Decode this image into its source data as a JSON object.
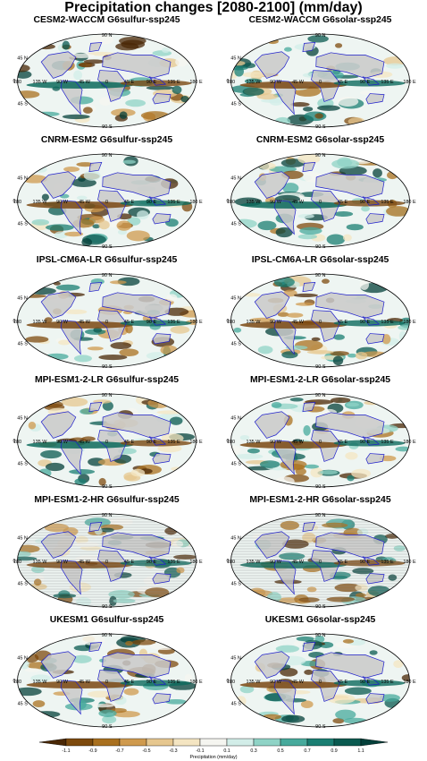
{
  "title": "Precipitation changes [2080-2100] (mm/day)",
  "panels": [
    {
      "label": "CESM2-WACCM G6sulfur-ssp245",
      "lat_labels": [
        "90 N",
        "45 N",
        "0",
        "45 S",
        "90 S"
      ],
      "lon_labels": [
        "180",
        "135 W",
        "90 W",
        "45 W",
        "0",
        "45 E",
        "90 E",
        "135 E",
        "180 E"
      ]
    },
    {
      "label": "CESM2-WACCM G6solar-ssp245",
      "lat_labels": [
        "90 N",
        "45 N",
        "0",
        "45 S",
        "90 S"
      ],
      "lon_labels": [
        "180",
        "135 W",
        "90 W",
        "45 W",
        "0",
        "45 E",
        "90 E",
        "135 E",
        "180 E"
      ]
    },
    {
      "label": "CNRM-ESM2 G6sulfur-ssp245",
      "lat_labels": [
        "90 N",
        "45 N",
        "0",
        "45 S",
        "90 S"
      ],
      "lon_labels": [
        "180",
        "135 W",
        "90 W",
        "45 W",
        "0",
        "45 E",
        "90 E",
        "135 E",
        "180 E"
      ]
    },
    {
      "label": "CNRM-ESM2 G6solar-ssp245",
      "lat_labels": [
        "90 N",
        "45 N",
        "0",
        "45 S",
        "90 S"
      ],
      "lon_labels": [
        "180",
        "135 W",
        "90 W",
        "45 W",
        "0",
        "45 E",
        "90 E",
        "135 E",
        "180 E"
      ]
    },
    {
      "label": "IPSL-CM6A-LR G6sulfur-ssp245",
      "lat_labels": [
        "90 N",
        "45 N",
        "0",
        "45 S",
        "90 S"
      ],
      "lon_labels": [
        "180",
        "135 W",
        "90 W",
        "45 W",
        "0",
        "45 E",
        "90 E",
        "135 E",
        "180 E"
      ]
    },
    {
      "label": "IPSL-CM6A-LR G6solar-ssp245",
      "lat_labels": [
        "90 N",
        "45 N",
        "0",
        "45 S",
        "90 S"
      ],
      "lon_labels": [
        "180",
        "135 W",
        "90 W",
        "45 W",
        "0",
        "45 E",
        "90 E",
        "135 E",
        "180 E"
      ]
    },
    {
      "label": "MPI-ESM1-2-LR G6sulfur-ssp245",
      "lat_labels": [
        "90 N",
        "45 N",
        "0",
        "45 S",
        "90 S"
      ],
      "lon_labels": [
        "180",
        "135 W",
        "90 W",
        "45 W",
        "0",
        "45 E",
        "90 E",
        "135 E",
        "180 E"
      ]
    },
    {
      "label": "MPI-ESM1-2-LR G6solar-ssp245",
      "lat_labels": [
        "90 N",
        "45 N",
        "0",
        "45 S",
        "90 S"
      ],
      "lon_labels": [
        "180",
        "135 W",
        "90 W",
        "45 W",
        "0",
        "45 E",
        "90 E",
        "135 E",
        "180 E"
      ]
    },
    {
      "label": "MPI-ESM1-2-HR G6sulfur-ssp245",
      "lat_labels": [
        "90 N",
        "45 N",
        "0",
        "45 S",
        "90 S"
      ],
      "lon_labels": [
        "180",
        "135 W",
        "90 W",
        "45 W",
        "0",
        "45 E",
        "90 E",
        "135 E",
        "180 E"
      ]
    },
    {
      "label": "MPI-ESM1-2-HR G6solar-ssp245",
      "lat_labels": [
        "90 N",
        "45 N",
        "0",
        "45 S",
        "90 S"
      ],
      "lon_labels": [
        "180",
        "135 W",
        "90 W",
        "45 W",
        "0",
        "45 E",
        "90 E",
        "135 E",
        "180 E"
      ]
    },
    {
      "label": "UKESM1 G6sulfur-ssp245",
      "lat_labels": [
        "90 N",
        "45 N",
        "0",
        "45 S",
        "90 S"
      ],
      "lon_labels": [
        "180",
        "135 W",
        "90 W",
        "45 W",
        "0",
        "45 E",
        "90 E",
        "135 E",
        "180 E"
      ]
    },
    {
      "label": "UKESM1 G6solar-ssp245",
      "lat_labels": [
        "90 N",
        "45 N",
        "0",
        "45 S",
        "90 S"
      ],
      "lon_labels": [
        "180",
        "135 W",
        "90 W",
        "45 W",
        "0",
        "45 E",
        "90 E",
        "135 E",
        "180 E"
      ]
    }
  ],
  "colorbar": {
    "label": "Precipitation (mm/day)",
    "ticks": [
      "-1.1",
      "-0.9",
      "-0.7",
      "-0.5",
      "-0.3",
      "-0.1",
      "0.1",
      "0.3",
      "0.5",
      "0.7",
      "0.9",
      "1.1"
    ],
    "colors": [
      "#4a2705",
      "#7d4a0d",
      "#a9701f",
      "#cf9a4e",
      "#e6c78f",
      "#f4e5c2",
      "#f5f5f0",
      "#d2ede8",
      "#8fd3c6",
      "#47aa9c",
      "#1a7e72",
      "#0a5a50",
      "#04403a"
    ]
  },
  "colors": {
    "land_masked": "#c9c9c9",
    "coastline": "#1f1fcc",
    "equator_dry": "#7a4812",
    "equator_wet": "#0c6a5c"
  }
}
